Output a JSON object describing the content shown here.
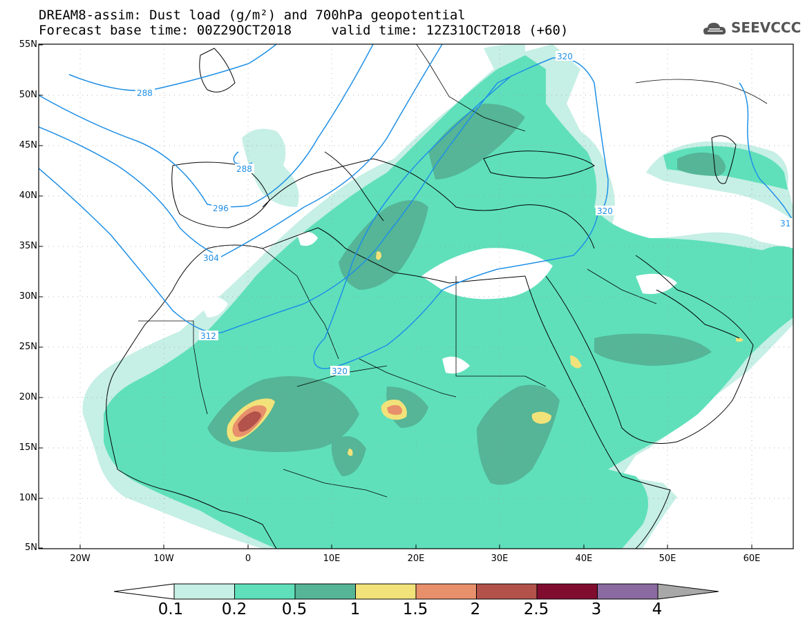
{
  "header": {
    "title_line1": "DREAM8-assim: Dust load (g/m²) and 700hPa geopotential",
    "title_line2": "Forecast base time: 00Z29OCT2018     valid time: 12Z31OCT2018 (+60)",
    "logo_text": "SEEVCCC"
  },
  "map": {
    "lat_labels": [
      "55N",
      "50N",
      "45N",
      "40N",
      "35N",
      "30N",
      "25N",
      "20N",
      "15N",
      "10N",
      "5N"
    ],
    "lon_labels": [
      "20W",
      "10W",
      "0",
      "10E",
      "20E",
      "30E",
      "40E",
      "50E",
      "60E"
    ],
    "contour_labels": [
      "288",
      "288",
      "296",
      "304",
      "312",
      "320",
      "320",
      "320",
      "31"
    ]
  },
  "legend": {
    "tick_labels": [
      "0.1",
      "0.2",
      "0.5",
      "1",
      "1.5",
      "2",
      "2.5",
      "3",
      "4"
    ],
    "colors": [
      "#c6efe5",
      "#5fe0bb",
      "#55b596",
      "#f2e27a",
      "#e8906b",
      "#b2524a",
      "#800d2f",
      "#8a6aa0",
      "#a8a8a8"
    ]
  },
  "colors": {
    "contour_line": "#1e8fe6",
    "coastline": "#000000"
  }
}
